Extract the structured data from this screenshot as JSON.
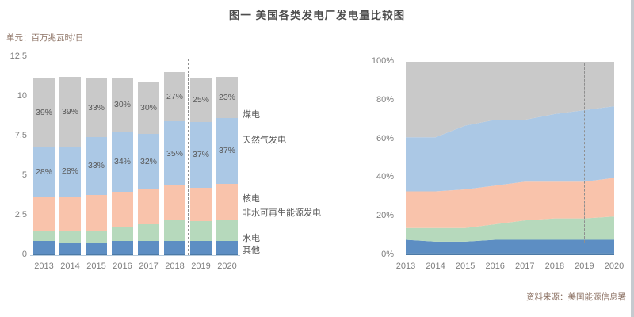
{
  "title": "图一  美国各类发电厂发电量比较图",
  "unit_label": "单元：百万兆瓦时/日",
  "source_label": "资料来源：美国能源信息署",
  "colors": {
    "coal_gray": "#c9c9c9",
    "gas_blue": "#abc8e5",
    "nuclear_salmon": "#f9c3ab",
    "renewables_green": "#b6d9bc",
    "hydro_blue": "#5d8ec3",
    "other_blue": "#4c7aa6",
    "axis_line": "#b7cbdd",
    "dashed_line": "#8f8f8f",
    "title_text": "#4d4d4d",
    "label_text": "#595959",
    "axis_text": "#7e7e7e",
    "note_text": "#8d7365"
  },
  "chart_data": [
    {
      "type": "bar",
      "stacked": true,
      "unit": "百万兆瓦时/日",
      "categories": [
        "2013",
        "2014",
        "2015",
        "2016",
        "2017",
        "2018",
        "2019",
        "2020"
      ],
      "yticks": [
        0,
        2.5,
        5,
        7.5,
        10,
        12.5
      ],
      "ylim": [
        0,
        12.5
      ],
      "totals": [
        11.2,
        11.25,
        11.15,
        11.15,
        10.95,
        11.55,
        11.2,
        11.25
      ],
      "series": [
        {
          "name": "其他",
          "color": "#4c7aa6",
          "share_pct": [
            1,
            1,
            1,
            1,
            1,
            1,
            1,
            1
          ]
        },
        {
          "name": "水电",
          "color": "#5d8ec3",
          "share_pct": [
            7,
            6,
            6,
            7,
            7,
            7,
            7,
            7
          ]
        },
        {
          "name": "非水可再生能源发电",
          "color": "#b6d9bc",
          "share_pct": [
            6,
            7,
            7,
            8,
            10,
            11,
            11,
            12
          ]
        },
        {
          "name": "核电",
          "color": "#f9c3ab",
          "share_pct": [
            19,
            19,
            20,
            20,
            20,
            19,
            19,
            20
          ]
        },
        {
          "name": "天然气发电",
          "color": "#abc8e5",
          "share_pct": [
            28,
            28,
            33,
            34,
            32,
            35,
            37,
            37
          ],
          "labels_visible": true
        },
        {
          "name": "煤电",
          "color": "#c9c9c9",
          "share_pct": [
            39,
            39,
            33,
            30,
            30,
            27,
            25,
            23
          ],
          "labels_visible": true
        }
      ],
      "forecast_divider_between": [
        "2018",
        "2019"
      ],
      "legend_position": "right-of-plot",
      "grid": false
    },
    {
      "type": "area",
      "stacked_pct": true,
      "categories": [
        "2013",
        "2014",
        "2015",
        "2016",
        "2017",
        "2018",
        "2019",
        "2020"
      ],
      "yticks": [
        "0%",
        "20%",
        "40%",
        "60%",
        "80%",
        "100%"
      ],
      "ylim": [
        0,
        100
      ],
      "series": [
        {
          "name": "其他",
          "color": "#4c7aa6",
          "share_pct": [
            1,
            1,
            1,
            1,
            1,
            1,
            1,
            1
          ]
        },
        {
          "name": "水电",
          "color": "#5d8ec3",
          "share_pct": [
            7,
            6,
            6,
            7,
            7,
            7,
            7,
            7
          ]
        },
        {
          "name": "非水可再生能源发电",
          "color": "#b6d9bc",
          "share_pct": [
            6,
            7,
            7,
            8,
            10,
            11,
            11,
            12
          ]
        },
        {
          "name": "核电",
          "color": "#f9c3ab",
          "share_pct": [
            19,
            19,
            20,
            20,
            20,
            19,
            19,
            20
          ]
        },
        {
          "name": "天然气发电",
          "color": "#abc8e5",
          "share_pct": [
            28,
            28,
            33,
            34,
            32,
            35,
            37,
            37
          ]
        },
        {
          "name": "煤电",
          "color": "#c9c9c9",
          "share_pct": [
            39,
            39,
            33,
            30,
            30,
            27,
            25,
            23
          ]
        }
      ],
      "forecast_divider_at": "2019",
      "grid": false
    }
  ]
}
